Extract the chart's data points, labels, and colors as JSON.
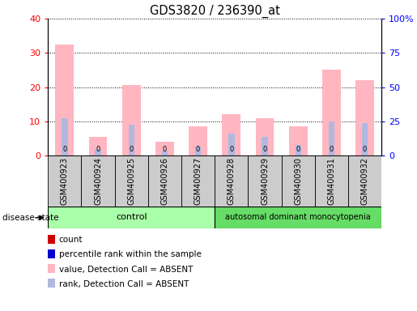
{
  "title": "GDS3820 / 236390_at",
  "samples": [
    "GSM400923",
    "GSM400924",
    "GSM400925",
    "GSM400926",
    "GSM400927",
    "GSM400928",
    "GSM400929",
    "GSM400930",
    "GSM400931",
    "GSM400932"
  ],
  "value_absent": [
    32.5,
    5.5,
    20.5,
    4.0,
    8.5,
    12.0,
    11.0,
    8.5,
    25.0,
    22.0
  ],
  "rank_absent": [
    11.0,
    2.0,
    9.0,
    1.5,
    2.5,
    6.5,
    5.5,
    3.0,
    10.0,
    9.5
  ],
  "ylim_left": [
    0,
    40
  ],
  "ylim_right": [
    0,
    100
  ],
  "yticks_left": [
    0,
    10,
    20,
    30,
    40
  ],
  "yticks_right": [
    0,
    25,
    50,
    75,
    100
  ],
  "yticklabels_right": [
    "0",
    "25",
    "50",
    "75",
    "100%"
  ],
  "color_value_absent": "#FFB6C1",
  "color_rank_absent": "#B0B8E0",
  "color_count": "#CC0000",
  "color_percentile": "#0000CC",
  "legend_items": [
    {
      "label": "count",
      "color": "#CC0000"
    },
    {
      "label": "percentile rank within the sample",
      "color": "#0000CC"
    },
    {
      "label": "value, Detection Call = ABSENT",
      "color": "#FFB6C1"
    },
    {
      "label": "rank, Detection Call = ABSENT",
      "color": "#B0B8E0"
    }
  ],
  "disease_state_label": "disease state",
  "control_label": "control",
  "disease_label": "autosomal dominant monocytopenia",
  "n_control": 5,
  "n_disease": 5,
  "control_color": "#AAFFAA",
  "disease_color": "#66DD66",
  "xlabel_bg_color": "#CCCCCC",
  "plot_bg_color": "#FFFFFF"
}
